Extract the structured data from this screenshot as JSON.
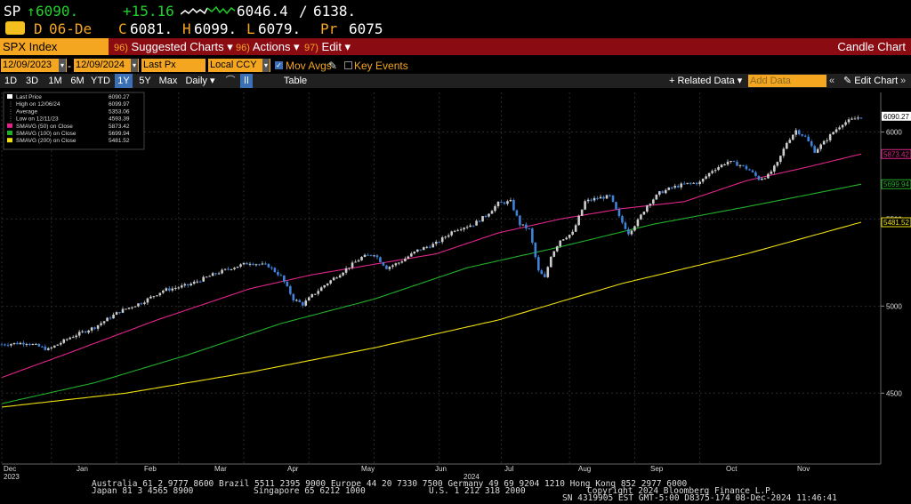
{
  "ticker": {
    "line1": {
      "symbol": "SP",
      "arrow": "↑",
      "last": "6090.",
      "change": "+15.16",
      "low_val": "6046.4",
      "slash": "/",
      "high_val": "6138."
    },
    "line2": {
      "badge": "D",
      "date": "06-De",
      "open_prefix": "C",
      "open": "6081.",
      "high_prefix": "H",
      "high": "6099.",
      "low_prefix": "L",
      "low": "6079.",
      "prev_prefix": "Pr",
      "prev": "6075"
    }
  },
  "menubar": {
    "index": "SPX Index",
    "items": [
      {
        "num": "96)",
        "label": "Suggested Charts ▾"
      },
      {
        "num": "96)",
        "label": "Actions ▾"
      },
      {
        "num": "97)",
        "label": "Edit ▾"
      }
    ],
    "chart_type": "Candle Chart"
  },
  "controls": {
    "start_date": "12/09/2023",
    "end_date": "12/09/2024",
    "field": "Last Px",
    "currency": "Local CCY",
    "mov_avgs": "Mov Avgs",
    "key_events": "Key Events",
    "periods": [
      "1D",
      "3D",
      "1M",
      "6M",
      "YTD",
      "1Y",
      "5Y",
      "Max"
    ],
    "selected_period": "1Y",
    "frequency": "Daily ▾",
    "table": "Table",
    "related_data": "+ Related Data ▾",
    "add_data_placeholder": "Add Data",
    "edit_chart": "Edit Chart"
  },
  "legend": [
    {
      "label": "Last Price",
      "value": "6090.27",
      "color": "#ffffff"
    },
    {
      "label": "High on 12/06/24",
      "value": "6099.97",
      "color": "#ffffff"
    },
    {
      "label": "Average",
      "value": "5353.06",
      "color": "#ffffff"
    },
    {
      "label": "Low on 12/11/23",
      "value": "4593.39",
      "color": "#ffffff"
    },
    {
      "label": "SMAVG (50)  on Close",
      "value": "5873.42",
      "color": "#e0258a"
    },
    {
      "label": "SMAVG (100)  on Close",
      "value": "5699.94",
      "color": "#22b02a"
    },
    {
      "label": "SMAVG (200)  on Close",
      "value": "5481.52",
      "color": "#f0e010"
    }
  ],
  "chart_data": {
    "type": "candlestick",
    "y_ticks": [
      4500,
      5000,
      5500,
      6000
    ],
    "y_range": [
      4093,
      6227
    ],
    "x_months": [
      "Dec",
      "Jan",
      "Feb",
      "Mar",
      "Apr",
      "May",
      "Jun",
      "Jul",
      "Aug",
      "Sep",
      "Oct",
      "Nov"
    ],
    "x_years": [
      "2023",
      "2024"
    ],
    "price_path": [
      [
        0,
        4780
      ],
      [
        8,
        4790
      ],
      [
        15,
        4750
      ],
      [
        22,
        4820
      ],
      [
        30,
        4880
      ],
      [
        38,
        4970
      ],
      [
        45,
        5020
      ],
      [
        52,
        5090
      ],
      [
        60,
        5120
      ],
      [
        68,
        5180
      ],
      [
        74,
        5220
      ],
      [
        80,
        5250
      ],
      [
        86,
        5230
      ],
      [
        90,
        5170
      ],
      [
        94,
        5040
      ],
      [
        97,
        5010
      ],
      [
        100,
        5060
      ],
      [
        104,
        5120
      ],
      [
        110,
        5200
      ],
      [
        116,
        5280
      ],
      [
        120,
        5300
      ],
      [
        124,
        5220
      ],
      [
        128,
        5250
      ],
      [
        134,
        5320
      ],
      [
        140,
        5360
      ],
      [
        146,
        5440
      ],
      [
        152,
        5470
      ],
      [
        156,
        5520
      ],
      [
        160,
        5590
      ],
      [
        164,
        5600
      ],
      [
        167,
        5470
      ],
      [
        170,
        5440
      ],
      [
        173,
        5200
      ],
      [
        175,
        5160
      ],
      [
        177,
        5290
      ],
      [
        180,
        5380
      ],
      [
        184,
        5420
      ],
      [
        188,
        5600
      ],
      [
        192,
        5620
      ],
      [
        196,
        5630
      ],
      [
        199,
        5510
      ],
      [
        202,
        5420
      ],
      [
        205,
        5490
      ],
      [
        208,
        5580
      ],
      [
        212,
        5650
      ],
      [
        216,
        5680
      ],
      [
        220,
        5700
      ],
      [
        225,
        5710
      ],
      [
        229,
        5780
      ],
      [
        234,
        5830
      ],
      [
        238,
        5810
      ],
      [
        241,
        5780
      ],
      [
        244,
        5730
      ],
      [
        247,
        5750
      ],
      [
        250,
        5820
      ],
      [
        253,
        5940
      ],
      [
        256,
        6010
      ],
      [
        259,
        5970
      ],
      [
        262,
        5890
      ],
      [
        265,
        5940
      ],
      [
        268,
        6000
      ],
      [
        271,
        6050
      ],
      [
        274,
        6070
      ],
      [
        277,
        6090
      ]
    ],
    "sma": [
      {
        "name": "SMAVG (50)",
        "color": "#e0258a",
        "end": 5873.42,
        "path": [
          [
            0,
            4590
          ],
          [
            20,
            4720
          ],
          [
            50,
            4920
          ],
          [
            80,
            5100
          ],
          [
            100,
            5180
          ],
          [
            120,
            5240
          ],
          [
            140,
            5300
          ],
          [
            160,
            5420
          ],
          [
            180,
            5500
          ],
          [
            200,
            5560
          ],
          [
            220,
            5600
          ],
          [
            240,
            5720
          ],
          [
            260,
            5800
          ],
          [
            277,
            5873.42
          ]
        ]
      },
      {
        "name": "SMAVG (100)",
        "color": "#22b02a",
        "end": 5699.94,
        "path": [
          [
            0,
            4440
          ],
          [
            30,
            4560
          ],
          [
            60,
            4720
          ],
          [
            90,
            4900
          ],
          [
            120,
            5040
          ],
          [
            150,
            5220
          ],
          [
            180,
            5340
          ],
          [
            210,
            5470
          ],
          [
            240,
            5570
          ],
          [
            260,
            5640
          ],
          [
            277,
            5699.94
          ]
        ]
      },
      {
        "name": "SMAVG (200)",
        "color": "#f0e010",
        "end": 5481.52,
        "path": [
          [
            0,
            4420
          ],
          [
            40,
            4500
          ],
          [
            80,
            4620
          ],
          [
            120,
            4760
          ],
          [
            160,
            4920
          ],
          [
            200,
            5130
          ],
          [
            240,
            5300
          ],
          [
            277,
            5481.52
          ]
        ]
      }
    ],
    "last_price": 6090.27
  },
  "footer": {
    "line1": "Australia 61 2 9777 8600 Brazil 5511 2395 9000 Europe 44 20 7330 7500 Germany 49 69 9204 1210 Hong Kong 852 2977 6000",
    "line2a": "Japan 81 3 4565 8900",
    "line2b": "Singapore 65 6212 1000",
    "line2c": "U.S. 1 212 318 2000",
    "line2d": "Copyright 2024 Bloomberg Finance L.P.",
    "line3": "SN 4319905 EST  GMT-5:00 D8375-174 08-Dec-2024 11:46:41"
  }
}
